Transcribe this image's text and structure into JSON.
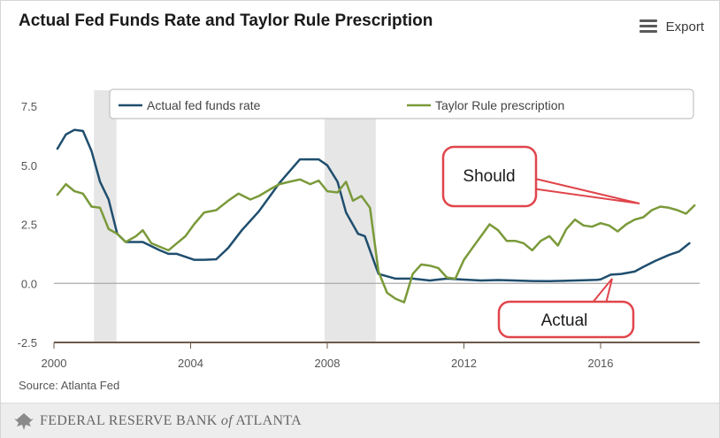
{
  "title": "Actual Fed Funds Rate and Taylor Rule Prescription",
  "export_label": "Export",
  "source": "Source: Atlanta Fed",
  "footer": {
    "bank_part1": "FEDERAL RESERVE BANK",
    "bank_of": "of",
    "bank_part2": "ATLANTA"
  },
  "callouts": {
    "should": "Should",
    "actual": "Actual"
  },
  "colors": {
    "actual": "#1f4e6e",
    "taylor": "#7a9a3a",
    "recession": "#e6e6e6",
    "callout_border": "#e0454b"
  },
  "chart_data": {
    "type": "line",
    "title": "Actual Fed Funds Rate and Taylor Rule Prescription",
    "xlabel": "",
    "ylabel": "",
    "xlim": [
      2000,
      2018.9
    ],
    "ylim": [
      -2.5,
      7.5
    ],
    "xticks": [
      2000,
      2004,
      2008,
      2012,
      2016
    ],
    "yticks": [
      7.5,
      5.0,
      2.5,
      0.0,
      -2.5
    ],
    "ytick_labels": [
      "7.5",
      "5.0",
      "2.5",
      "0.0",
      "-2.5"
    ],
    "recessions": [
      [
        2001.17,
        2001.83
      ],
      [
        2007.92,
        2009.42
      ]
    ],
    "legend": {
      "placement": "top",
      "entries": [
        "Actual fed funds rate",
        "Taylor Rule prescription"
      ]
    },
    "series": [
      {
        "name": "Actual fed funds rate",
        "x": [
          2000.1,
          2000.35,
          2000.6,
          2000.85,
          2001.1,
          2001.35,
          2001.6,
          2001.85,
          2002.1,
          2002.6,
          2003.1,
          2003.35,
          2003.6,
          2004.1,
          2004.4,
          2004.75,
          2005.1,
          2005.5,
          2006.0,
          2006.35,
          2006.6,
          2006.9,
          2007.2,
          2007.5,
          2007.75,
          2008.0,
          2008.3,
          2008.55,
          2008.9,
          2009.1,
          2009.5,
          2010.0,
          2010.5,
          2011.0,
          2011.5,
          2012.0,
          2012.5,
          2013.0,
          2013.5,
          2014.0,
          2014.5,
          2015.0,
          2015.5,
          2015.9,
          2016.0,
          2016.3,
          2016.6,
          2017.0,
          2017.25,
          2017.6,
          2018.0,
          2018.3,
          2018.6
        ],
        "values": [
          5.7,
          6.3,
          6.5,
          6.45,
          5.6,
          4.3,
          3.55,
          2.1,
          1.75,
          1.75,
          1.4,
          1.25,
          1.25,
          1.0,
          1.0,
          1.02,
          1.5,
          2.25,
          3.05,
          3.75,
          4.25,
          4.75,
          5.25,
          5.25,
          5.25,
          5.0,
          4.3,
          3.0,
          2.1,
          2.0,
          0.4,
          0.2,
          0.2,
          0.12,
          0.2,
          0.16,
          0.12,
          0.14,
          0.12,
          0.1,
          0.09,
          0.11,
          0.13,
          0.15,
          0.17,
          0.37,
          0.4,
          0.5,
          0.7,
          0.95,
          1.2,
          1.35,
          1.7
        ]
      },
      {
        "name": "Taylor Rule prescription",
        "x": [
          2000.1,
          2000.35,
          2000.6,
          2000.85,
          2001.1,
          2001.35,
          2001.6,
          2001.85,
          2002.1,
          2002.4,
          2002.6,
          2002.85,
          2003.1,
          2003.35,
          2003.6,
          2003.85,
          2004.1,
          2004.4,
          2004.75,
          2005.1,
          2005.4,
          2005.75,
          2006.0,
          2006.35,
          2006.6,
          2006.9,
          2007.2,
          2007.5,
          2007.75,
          2008.0,
          2008.3,
          2008.55,
          2008.75,
          2009.0,
          2009.25,
          2009.5,
          2009.75,
          2010.0,
          2010.25,
          2010.5,
          2010.75,
          2011.0,
          2011.25,
          2011.5,
          2011.75,
          2012.0,
          2012.25,
          2012.5,
          2012.75,
          2013.0,
          2013.25,
          2013.5,
          2013.75,
          2014.0,
          2014.25,
          2014.5,
          2014.75,
          2015.0,
          2015.25,
          2015.5,
          2015.75,
          2016.0,
          2016.25,
          2016.5,
          2016.75,
          2017.0,
          2017.25,
          2017.5,
          2017.75,
          2018.0,
          2018.25,
          2018.5,
          2018.75
        ],
        "values": [
          3.75,
          4.2,
          3.9,
          3.8,
          3.25,
          3.2,
          2.3,
          2.1,
          1.75,
          2.0,
          2.25,
          1.7,
          1.55,
          1.4,
          1.7,
          2.0,
          2.5,
          3.0,
          3.1,
          3.5,
          3.8,
          3.55,
          3.7,
          4.0,
          4.2,
          4.3,
          4.4,
          4.2,
          4.35,
          3.9,
          3.85,
          4.3,
          3.5,
          3.7,
          3.2,
          0.5,
          -0.4,
          -0.65,
          -0.8,
          0.4,
          0.8,
          0.75,
          0.65,
          0.25,
          0.2,
          1.0,
          1.5,
          2.0,
          2.5,
          2.25,
          1.8,
          1.8,
          1.7,
          1.4,
          1.8,
          2.0,
          1.6,
          2.3,
          2.7,
          2.45,
          2.4,
          2.55,
          2.45,
          2.2,
          2.5,
          2.7,
          2.8,
          3.1,
          3.25,
          3.2,
          3.1,
          2.95,
          3.3
        ]
      }
    ]
  }
}
